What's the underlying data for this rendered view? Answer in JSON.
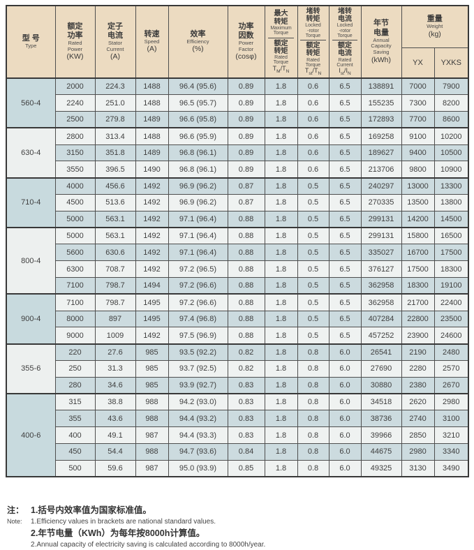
{
  "palette": {
    "header_bg": "#ecdbc1",
    "row_blue": "#ccdbdf",
    "row_white": "#eff2f1",
    "type_cell_blue": "#c8dade",
    "type_cell_white": "#edf0ef",
    "border_dark": "#383838",
    "border_inner": "#4e4e4e",
    "text": "#3d3d3d",
    "page_bg": "#ffffff"
  },
  "table": {
    "header": {
      "type": {
        "zh": "型 号",
        "en": "Type"
      },
      "rated_power": {
        "zh": "额定\n功率",
        "en": "Rated\nPower",
        "unit": "(KW)"
      },
      "stator_current": {
        "zh": "定子\n电流",
        "en": "Stator\nCurrent",
        "unit": "(A)"
      },
      "speed": {
        "zh": "转速",
        "en": "Speed",
        "unit": "(A)"
      },
      "efficiency": {
        "zh": "效率",
        "en": "Efficiency",
        "unit": "(%)"
      },
      "power_factor": {
        "zh": "功率\n因数",
        "en": "Power\nFactor",
        "unit": "(cosφ)"
      },
      "max_torque": {
        "top_zh": "最大\n转矩",
        "top_en": "Maximum\nTorque",
        "bot_zh": "额定\n转矩",
        "bot_en": "Rated\nTorque",
        "sym": {
          "base1": "T",
          "sub1": "M",
          "sep": "/",
          "base2": "T",
          "sub2": "N"
        }
      },
      "locked_rotor_torque": {
        "top_zh": "堵转\n转矩",
        "top_en": "Locked\n-rotor\nTorque",
        "bot_zh": "额定\n转矩",
        "bot_en": "Rated\nTorque",
        "sym": {
          "base1": "T",
          "sub1": "st",
          "sep": "/",
          "base2": "T",
          "sub2": "N"
        }
      },
      "locked_rotor_current": {
        "top_zh": "堵转\n电流",
        "top_en": "Locked\n-rotor\nTorque",
        "bot_zh": "额定\n电流",
        "bot_en": "Rated\nCurrent",
        "sym": {
          "base1": "I",
          "sub1": "st",
          "sep": "/",
          "base2": "I",
          "sub2": "N"
        }
      },
      "annual_saving": {
        "zh": "年节\n电量",
        "en": "Annual\nCapacity\nSaving",
        "unit": "(kWh)"
      },
      "weight": {
        "zh": "重量",
        "en": "Weight",
        "unit": "(kg)",
        "sub_col1": "YX",
        "sub_col2": "YXKS"
      }
    },
    "groups": [
      {
        "type": "560-4",
        "rows": [
          [
            "2000",
            "224.3",
            "1488",
            "96.4 (95.6)",
            "0.89",
            "1.8",
            "0.6",
            "6.5",
            "138891",
            "7000",
            "7900"
          ],
          [
            "2240",
            "251.0",
            "1488",
            "96.5 (95.7)",
            "0.89",
            "1.8",
            "0.6",
            "6.5",
            "155235",
            "7300",
            "8200"
          ],
          [
            "2500",
            "279.8",
            "1489",
            "96.6 (95.8)",
            "0.89",
            "1.8",
            "0.6",
            "6.5",
            "172893",
            "7700",
            "8600"
          ]
        ]
      },
      {
        "type": "630-4",
        "rows": [
          [
            "2800",
            "313.4",
            "1488",
            "96.6 (95.9)",
            "0.89",
            "1.8",
            "0.6",
            "6.5",
            "169258",
            "9100",
            "10200"
          ],
          [
            "3150",
            "351.8",
            "1489",
            "96.8 (96.1)",
            "0.89",
            "1.8",
            "0.6",
            "6.5",
            "189627",
            "9400",
            "10500"
          ],
          [
            "3550",
            "396.5",
            "1490",
            "96.8 (96.1)",
            "0.89",
            "1.8",
            "0.6",
            "6.5",
            "213706",
            "9800",
            "10900"
          ]
        ]
      },
      {
        "type": "710-4",
        "rows": [
          [
            "4000",
            "456.6",
            "1492",
            "96.9 (96.2)",
            "0.87",
            "1.8",
            "0.5",
            "6.5",
            "240297",
            "13000",
            "13300"
          ],
          [
            "4500",
            "513.6",
            "1492",
            "96.9 (96.2)",
            "0.87",
            "1.8",
            "0.5",
            "6.5",
            "270335",
            "13500",
            "13800"
          ],
          [
            "5000",
            "563.1",
            "1492",
            "97.1 (96.4)",
            "0.88",
            "1.8",
            "0.5",
            "6.5",
            "299131",
            "14200",
            "14500"
          ]
        ]
      },
      {
        "type": "800-4",
        "rows": [
          [
            "5000",
            "563.1",
            "1492",
            "97.1 (96.4)",
            "0.88",
            "1.8",
            "0.5",
            "6.5",
            "299131",
            "15800",
            "16500"
          ],
          [
            "5600",
            "630.6",
            "1492",
            "97.1 (96.4)",
            "0.88",
            "1.8",
            "0.5",
            "6.5",
            "335027",
            "16700",
            "17500"
          ],
          [
            "6300",
            "708.7",
            "1492",
            "97.2 (96.5)",
            "0.88",
            "1.8",
            "0.5",
            "6.5",
            "376127",
            "17500",
            "18300"
          ],
          [
            "7100",
            "798.7",
            "1494",
            "97.2 (96.6)",
            "0.88",
            "1.8",
            "0.5",
            "6.5",
            "362958",
            "18300",
            "19100"
          ]
        ]
      },
      {
        "type": "900-4",
        "rows": [
          [
            "7100",
            "798.7",
            "1495",
            "97.2 (96.6)",
            "0.88",
            "1.8",
            "0.5",
            "6.5",
            "362958",
            "21700",
            "22400"
          ],
          [
            "8000",
            "897",
            "1495",
            "97.4 (96.8)",
            "0.88",
            "1.8",
            "0.5",
            "6.5",
            "407284",
            "22800",
            "23500"
          ],
          [
            "9000",
            "1009",
            "1492",
            "97.5 (96.9)",
            "0.88",
            "1.8",
            "0.5",
            "6.5",
            "457252",
            "23900",
            "24600"
          ]
        ]
      },
      {
        "type": "355-6",
        "rows": [
          [
            "220",
            "27.6",
            "985",
            "93.5 (92.2)",
            "0.82",
            "1.8",
            "0.8",
            "6.0",
            "26541",
            "2190",
            "2480"
          ],
          [
            "250",
            "31.3",
            "985",
            "93.7 (92.5)",
            "0.82",
            "1.8",
            "0.8",
            "6.0",
            "27690",
            "2280",
            "2570"
          ],
          [
            "280",
            "34.6",
            "985",
            "93.9 (92.7)",
            "0.83",
            "1.8",
            "0.8",
            "6.0",
            "30880",
            "2380",
            "2670"
          ]
        ]
      },
      {
        "type": "400-6",
        "rows": [
          [
            "315",
            "38.8",
            "988",
            "94.2 (93.0)",
            "0.83",
            "1.8",
            "0.8",
            "6.0",
            "34518",
            "2620",
            "2980"
          ],
          [
            "355",
            "43.6",
            "988",
            "94.4 (93.2)",
            "0.83",
            "1.8",
            "0.8",
            "6.0",
            "38736",
            "2740",
            "3100"
          ],
          [
            "400",
            "49.1",
            "987",
            "94.4 (93.3)",
            "0.83",
            "1.8",
            "0.8",
            "6.0",
            "39966",
            "2850",
            "3210"
          ],
          [
            "450",
            "54.4",
            "988",
            "94.7 (93.6)",
            "0.84",
            "1.8",
            "0.8",
            "6.0",
            "44675",
            "2980",
            "3340"
          ],
          [
            "500",
            "59.6",
            "987",
            "95.0 (93.9)",
            "0.85",
            "1.8",
            "0.8",
            "6.0",
            "49325",
            "3130",
            "3490"
          ]
        ]
      }
    ]
  },
  "notes": {
    "label_zh": "注：",
    "label_en": "Note:",
    "item1_zh": "1.括号内效率值为国家标准值。",
    "item1_en": "1.Efficiency values in brackets are national standard values.",
    "item2_zh": "2.年节电量（KWh）为每年按8000h计算值。",
    "item2_en": "2.Annual capacity of electricity saving is calculated according to 8000h/year."
  }
}
